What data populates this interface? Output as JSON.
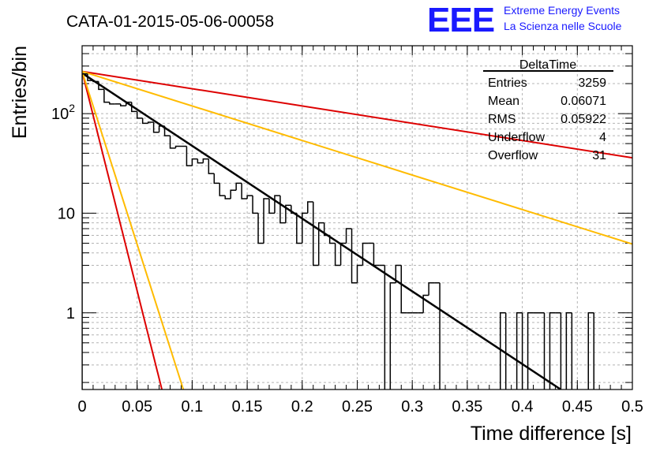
{
  "header": {
    "run_title": "CATA-01-2015-05-06-00058",
    "logo_text": "EEE",
    "logo_line1": "Extreme Energy Events",
    "logo_line2": "La Scienza nelle Scuole"
  },
  "stats_box": {
    "title": "DeltaTime",
    "rows": [
      {
        "label": "Entries",
        "value": "3259"
      },
      {
        "label": "Mean",
        "value": "0.06071"
      },
      {
        "label": "RMS",
        "value": "0.05922"
      },
      {
        "label": "Underflow",
        "value": "4"
      },
      {
        "label": "Overflow",
        "value": "31"
      }
    ]
  },
  "colors": {
    "histogram": "#000000",
    "fit": "#000000",
    "red": "#dd0000",
    "orange": "#ffbb00",
    "logo": "#1a1aff",
    "grid": "#b4b4b4"
  },
  "chart_data": {
    "type": "line",
    "xlabel": "Time difference [s]",
    "ylabel": "Entries/bin",
    "xlim": [
      0,
      0.5
    ],
    "ylim": [
      0.17,
      480
    ],
    "yscale": "log",
    "grid": true,
    "x_ticks": [
      0,
      0.05,
      0.1,
      0.15,
      0.2,
      0.25,
      0.3,
      0.35,
      0.4,
      0.45,
      0.5
    ],
    "x_tick_labels": [
      "0",
      "0.05",
      "0.1",
      "0.15",
      "0.2",
      "0.25",
      "0.3",
      "0.35",
      "0.4",
      "0.45",
      "0.5"
    ],
    "y_ticks": [
      1,
      10,
      100
    ],
    "y_tick_labels": [
      "1",
      "10",
      "10^2"
    ],
    "histogram": {
      "name": "DeltaTime",
      "bin_width": 0.005,
      "x_start": 0,
      "values": [
        250,
        215,
        210,
        175,
        130,
        125,
        125,
        120,
        130,
        105,
        90,
        80,
        82,
        65,
        75,
        60,
        45,
        47,
        47,
        30,
        35,
        32,
        35,
        25,
        20,
        15,
        14,
        17,
        20,
        14,
        15,
        10,
        5,
        14,
        10,
        15,
        8,
        12,
        10,
        5,
        10,
        13,
        3,
        8,
        6,
        5,
        3,
        5,
        7,
        2,
        3,
        5,
        5,
        3,
        3,
        0,
        2,
        3,
        1,
        1,
        1,
        1,
        1.5,
        2,
        2,
        0.1,
        0.1,
        0.1,
        0.1,
        0.1,
        0.1,
        0.1,
        0.1,
        0.1,
        0.1,
        0.1,
        1,
        0.1,
        0.1,
        1,
        0.1,
        1,
        1,
        1,
        0.1,
        1,
        1,
        0.1,
        1,
        0.1,
        0.1,
        0.1,
        1,
        0.1
      ]
    },
    "series": [
      {
        "color": "#000000",
        "x": [
          0,
          0.435
        ],
        "y": [
          255,
          0.17
        ]
      },
      {
        "color": "#dd0000",
        "x": [
          0,
          0.5
        ],
        "y": [
          265,
          36
        ]
      },
      {
        "color": "#ffbb00",
        "x": [
          0,
          0.5
        ],
        "y": [
          265,
          4.9
        ]
      },
      {
        "color": "#dd0000",
        "x": [
          0,
          0.0725
        ],
        "y": [
          265,
          0.17
        ]
      },
      {
        "color": "#ffbb00",
        "x": [
          0,
          0.092
        ],
        "y": [
          265,
          0.17
        ]
      }
    ]
  }
}
